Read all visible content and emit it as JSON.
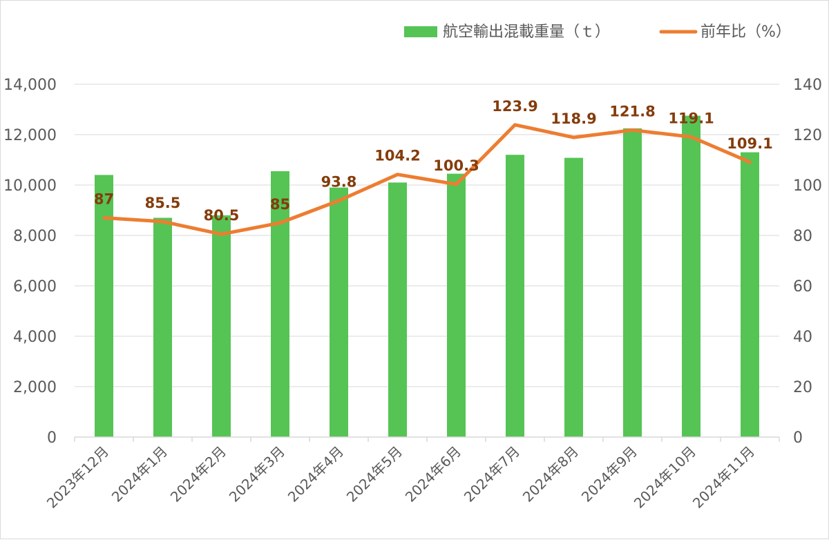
{
  "chart_data": {
    "type": "bar",
    "title": "",
    "categories": [
      "2023年12月",
      "2024年1月",
      "2024年2月",
      "2024年3月",
      "2024年4月",
      "2024年5月",
      "2024年6月",
      "2024年7月",
      "2024年8月",
      "2024年9月",
      "2024年10月",
      "2024年11月"
    ],
    "series": [
      {
        "name": "航空輸出混載重量（ｔ）",
        "chart": "bar",
        "axis": "left",
        "color": "#55c455",
        "values": [
          10400,
          8700,
          8800,
          10550,
          9900,
          10100,
          10450,
          11200,
          11080,
          12250,
          12750,
          11300
        ]
      },
      {
        "name": "前年比（%）",
        "chart": "line",
        "axis": "right",
        "color": "#ed7d31",
        "values": [
          87,
          85.5,
          80.5,
          85,
          93.8,
          104.2,
          100.3,
          123.9,
          118.9,
          121.8,
          119.1,
          109.1
        ],
        "data_labels": [
          "87",
          "85.5",
          "80.5",
          "85",
          "93.8",
          "104.2",
          "100.3",
          "123.9",
          "118.9",
          "121.8",
          "119.1",
          "109.1"
        ],
        "label_color": "#843c0c"
      }
    ],
    "y_left": {
      "range": [
        0,
        14000
      ],
      "ticks": [
        "0",
        "2,000",
        "4,000",
        "6,000",
        "8,000",
        "10,000",
        "12,000",
        "14,000"
      ]
    },
    "y_right": {
      "range": [
        0,
        140
      ],
      "ticks": [
        "0",
        "20",
        "40",
        "60",
        "80",
        "100",
        "120",
        "140"
      ]
    },
    "grid": true,
    "legend": "top-right"
  }
}
